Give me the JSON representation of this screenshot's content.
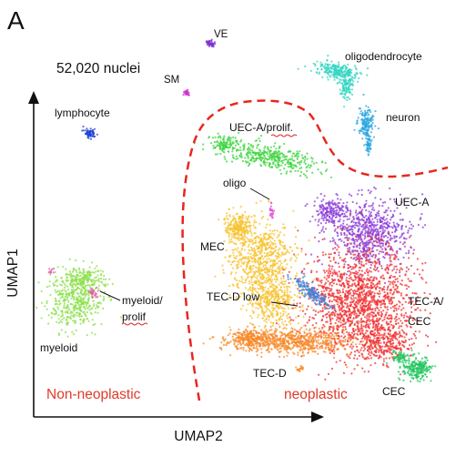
{
  "panel_label": "A",
  "chart_data": {
    "type": "scatter",
    "xlabel": "UMAP2",
    "ylabel": "UMAP1",
    "annotation": "52,020 nuclei",
    "region_labels": [
      "Non-neoplastic",
      "neoplastic"
    ],
    "grid": false,
    "legend": "none",
    "clusters": [
      {
        "name": "VE",
        "color": "#7b2fd1"
      },
      {
        "name": "SM",
        "color": "#cc33cc"
      },
      {
        "name": "oligodendrocyte",
        "color": "#33d6c2"
      },
      {
        "name": "lymphocyte",
        "color": "#1f3fd6"
      },
      {
        "name": "neuron",
        "color": "#2aa7e0"
      },
      {
        "name": "UEC-A/prolif.",
        "color": "#39d43b"
      },
      {
        "name": "oligo",
        "color": "#e34fd6"
      },
      {
        "name": "UEC-A",
        "color": "#8a3ad8"
      },
      {
        "name": "MEC",
        "color": "#f7c12c"
      },
      {
        "name": "myeloid/ prolif",
        "color": "#e55aa8"
      },
      {
        "name": "TEC-D low",
        "color": "#3d7fd9"
      },
      {
        "name": "TEC-A/ CEC",
        "color": "#f03030"
      },
      {
        "name": "myeloid",
        "color": "#8be04a"
      },
      {
        "name": "TEC-D",
        "color": "#f7892a"
      },
      {
        "name": "CEC",
        "color": "#22c55e"
      }
    ]
  },
  "colors": {
    "region_line": "#e8261f",
    "region_text": "#e03a2a",
    "axis": "#111111"
  }
}
